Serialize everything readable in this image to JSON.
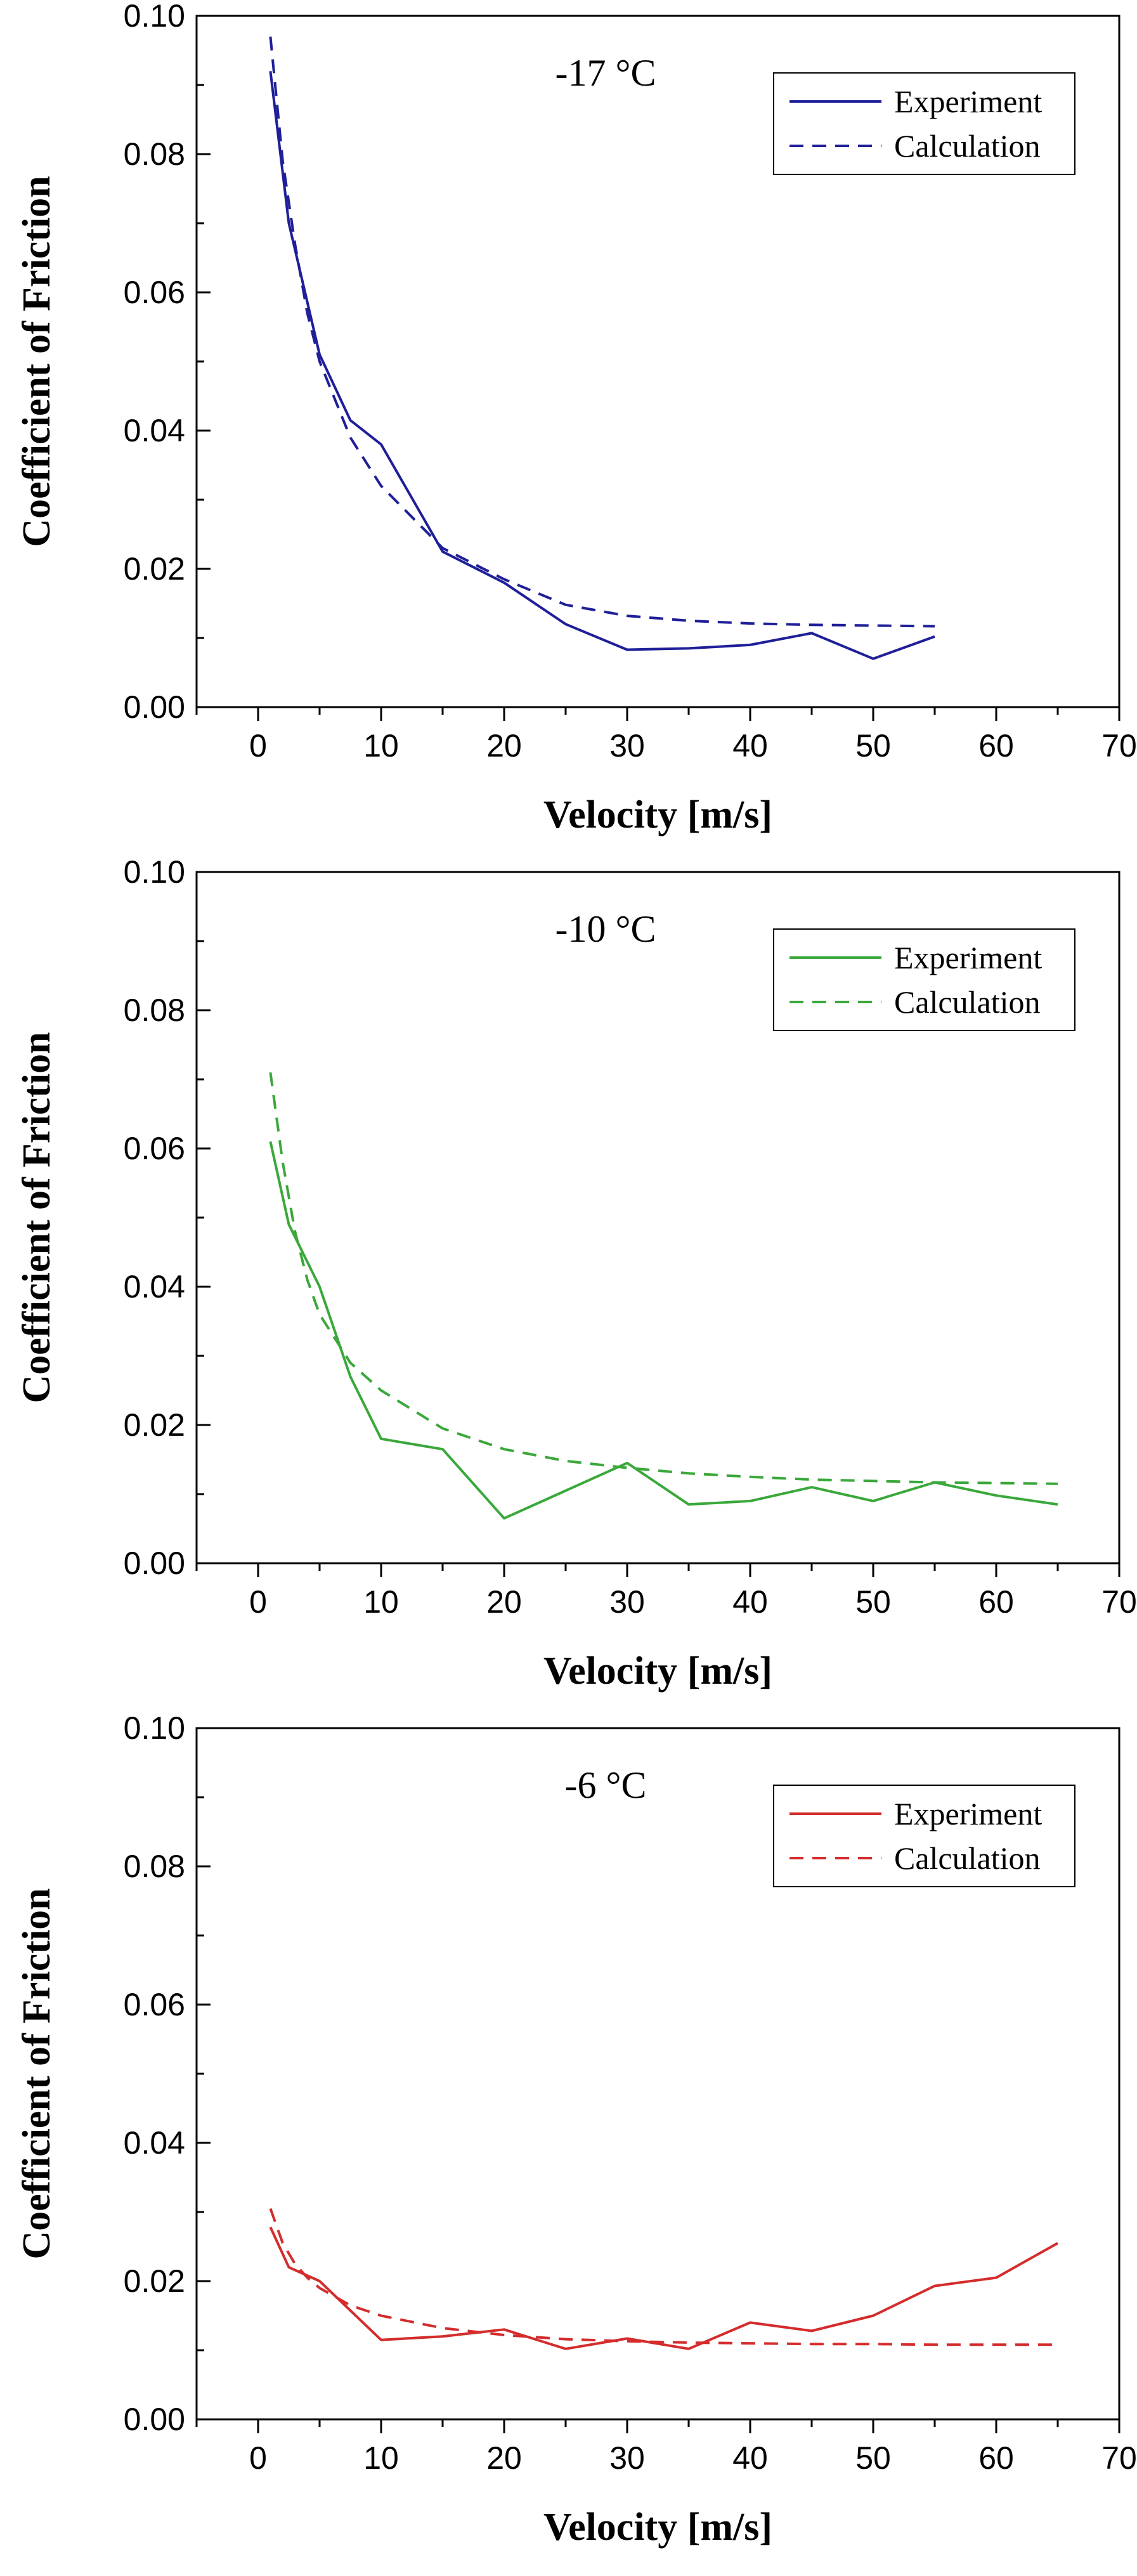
{
  "chart_data": [
    {
      "type": "line",
      "title": "-17 °C",
      "xlabel": "Velocity [m/s]",
      "ylabel": "Coefficient of Friction",
      "xlim": [
        -5,
        70
      ],
      "ylim": [
        0,
        0.1
      ],
      "xticks": [
        0,
        10,
        20,
        30,
        40,
        50,
        60,
        70
      ],
      "xtick_labels": [
        "0",
        "10",
        "20",
        "30",
        "40",
        "50",
        "60",
        "70"
      ],
      "yticks": [
        0,
        0.02,
        0.04,
        0.06,
        0.08,
        0.1
      ],
      "ytick_labels": [
        "0.00",
        "0.02",
        "0.04",
        "0.06",
        "0.08",
        "0.10"
      ],
      "legend_position": "top-right",
      "color": "#1f1f99",
      "series": [
        {
          "name": "Experiment",
          "style": "solid",
          "x": [
            1,
            2.5,
            5,
            7.5,
            10,
            15,
            20,
            25,
            30,
            35,
            40,
            45,
            50,
            55
          ],
          "y": [
            0.092,
            0.07,
            0.051,
            0.0415,
            0.038,
            0.0225,
            0.018,
            0.012,
            0.0083,
            0.0085,
            0.009,
            0.0107,
            0.007,
            0.0102
          ]
        },
        {
          "name": "Calculation",
          "style": "dashed",
          "x": [
            1,
            2,
            3,
            4,
            5,
            7.5,
            10,
            15,
            20,
            25,
            30,
            35,
            40,
            45,
            50,
            55
          ],
          "y": [
            0.097,
            0.079,
            0.067,
            0.057,
            0.05,
            0.039,
            0.032,
            0.023,
            0.0185,
            0.0148,
            0.0132,
            0.0125,
            0.0121,
            0.0119,
            0.0118,
            0.0117
          ]
        }
      ]
    },
    {
      "type": "line",
      "title": "-10 °C",
      "xlabel": "Velocity [m/s]",
      "ylabel": "Coefficient of Friction",
      "xlim": [
        -5,
        70
      ],
      "ylim": [
        0,
        0.1
      ],
      "xticks": [
        0,
        10,
        20,
        30,
        40,
        50,
        60,
        70
      ],
      "xtick_labels": [
        "0",
        "10",
        "20",
        "30",
        "40",
        "50",
        "60",
        "70"
      ],
      "yticks": [
        0,
        0.02,
        0.04,
        0.06,
        0.08,
        0.1
      ],
      "ytick_labels": [
        "0.00",
        "0.02",
        "0.04",
        "0.06",
        "0.08",
        "0.10"
      ],
      "legend_position": "top-right",
      "color": "#3aa83a",
      "series": [
        {
          "name": "Experiment",
          "style": "solid",
          "x": [
            1,
            2.5,
            5,
            7.5,
            10,
            15,
            20,
            25,
            30,
            35,
            40,
            45,
            50,
            55,
            60,
            65
          ],
          "y": [
            0.061,
            0.049,
            0.04,
            0.027,
            0.018,
            0.0165,
            0.0065,
            0.0105,
            0.0145,
            0.0085,
            0.009,
            0.011,
            0.009,
            0.0117,
            0.0098,
            0.0085
          ]
        },
        {
          "name": "Calculation",
          "style": "dashed",
          "x": [
            1,
            2,
            3,
            4,
            5,
            7.5,
            10,
            15,
            20,
            25,
            30,
            35,
            40,
            45,
            50,
            55,
            60,
            65
          ],
          "y": [
            0.071,
            0.058,
            0.048,
            0.041,
            0.036,
            0.029,
            0.025,
            0.0195,
            0.0165,
            0.0148,
            0.0138,
            0.013,
            0.0125,
            0.0121,
            0.0119,
            0.0117,
            0.0116,
            0.0115
          ]
        }
      ]
    },
    {
      "type": "line",
      "title": "-6 °C",
      "xlabel": "Velocity [m/s]",
      "ylabel": "Coefficient of Friction",
      "xlim": [
        -5,
        70
      ],
      "ylim": [
        0,
        0.1
      ],
      "xticks": [
        0,
        10,
        20,
        30,
        40,
        50,
        60,
        70
      ],
      "xtick_labels": [
        "0",
        "10",
        "20",
        "30",
        "40",
        "50",
        "60",
        "70"
      ],
      "yticks": [
        0,
        0.02,
        0.04,
        0.06,
        0.08,
        0.1
      ],
      "ytick_labels": [
        "0.00",
        "0.02",
        "0.04",
        "0.06",
        "0.08",
        "0.10"
      ],
      "legend_position": "top-right",
      "color": "#d42c2c",
      "series": [
        {
          "name": "Experiment",
          "style": "solid",
          "x": [
            1,
            2.5,
            5,
            10,
            15,
            20,
            25,
            30,
            35,
            40,
            45,
            50,
            55,
            60,
            65
          ],
          "y": [
            0.0278,
            0.022,
            0.02,
            0.0115,
            0.012,
            0.013,
            0.0102,
            0.0117,
            0.0102,
            0.014,
            0.0128,
            0.015,
            0.0193,
            0.0205,
            0.0255
          ]
        },
        {
          "name": "Calculation",
          "style": "dashed",
          "x": [
            1,
            2,
            3,
            4,
            5,
            7.5,
            10,
            15,
            20,
            25,
            30,
            35,
            40,
            45,
            50,
            55,
            60,
            65
          ],
          "y": [
            0.0305,
            0.0255,
            0.0225,
            0.0205,
            0.019,
            0.0165,
            0.015,
            0.0132,
            0.0122,
            0.0116,
            0.0113,
            0.0111,
            0.011,
            0.0109,
            0.0109,
            0.0108,
            0.0108,
            0.0108
          ]
        }
      ]
    }
  ]
}
